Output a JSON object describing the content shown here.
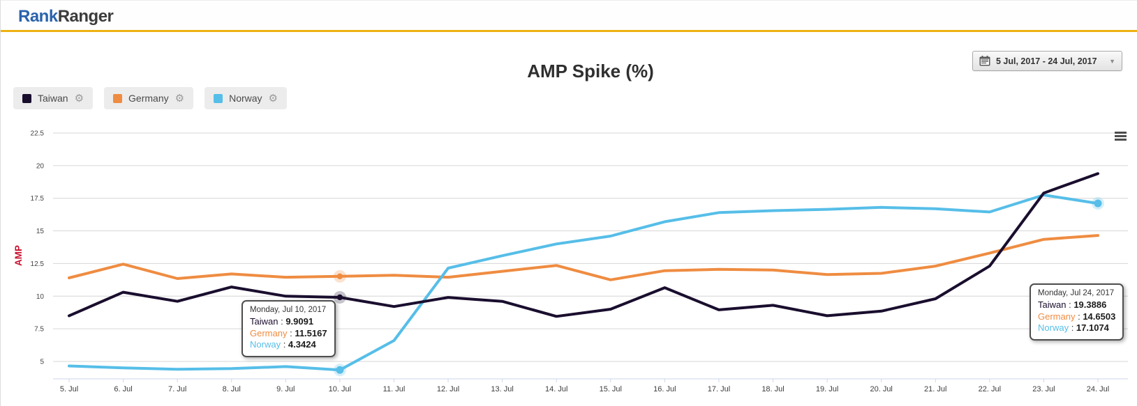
{
  "header": {
    "logo_rank": "Rank",
    "logo_ranger": "Ranger"
  },
  "date_picker": {
    "value": "5 Jul, 2017 - 24 Jul, 2017",
    "dropdown_glyph": "▼"
  },
  "chart_title": "AMP Spike (%)",
  "legend": [
    {
      "name": "Taiwan",
      "color": "#1a0e2e",
      "gear_glyph": "⚙"
    },
    {
      "name": "Germany",
      "color": "#ef8c41",
      "gear_glyph": "⚙"
    },
    {
      "name": "Norway",
      "color": "#56bee8",
      "gear_glyph": "⚙"
    }
  ],
  "colors": {
    "accent_header": "#efb112",
    "logo_blue": "#2a63ad",
    "y_axis_title_red": "#c8102e",
    "gridline": "#d6d6d6",
    "axis_line": "#ccd6eb",
    "tick_label": "#3c3c3c"
  },
  "chart_data": {
    "type": "line",
    "title": "AMP Spike (%)",
    "ylabel": "AMP",
    "ylabel_color": "#c8102e",
    "grid": "horizontal-only",
    "legend_position": "top-left",
    "x_labels": [
      "5. Jul",
      "6. Jul",
      "7. Jul",
      "8. Jul",
      "9. Jul",
      "10. Jul",
      "11. Jul",
      "12. Jul",
      "13. Jul",
      "14. Jul",
      "15. Jul",
      "16. Jul",
      "17. Jul",
      "18. Jul",
      "19. Jul",
      "20. Jul",
      "21. Jul",
      "22. Jul",
      "23. Jul",
      "24. Jul"
    ],
    "y_ticks": [
      5,
      7.5,
      10,
      12.5,
      15,
      17.5,
      20,
      22.5
    ],
    "ylim": [
      3.7,
      22.8
    ],
    "series": [
      {
        "name": "Taiwan",
        "color": "#1a0e2e",
        "values": [
          8.5,
          10.3,
          9.6,
          10.7,
          10.0,
          9.9091,
          9.2,
          9.9,
          9.6,
          8.45,
          9.0,
          10.65,
          8.95,
          9.3,
          8.5,
          8.85,
          9.8,
          12.3,
          17.9,
          19.3886
        ]
      },
      {
        "name": "Germany",
        "color": "#ef8c41",
        "values": [
          11.4,
          12.45,
          11.35,
          11.7,
          11.45,
          11.5167,
          11.6,
          11.45,
          11.9,
          12.35,
          11.25,
          11.95,
          12.05,
          12.0,
          11.65,
          11.75,
          12.3,
          13.3,
          14.35,
          14.6503
        ]
      },
      {
        "name": "Norway",
        "color": "#56bee8",
        "values": [
          4.65,
          4.5,
          4.4,
          4.45,
          4.6,
          4.3424,
          6.6,
          12.15,
          13.1,
          14.0,
          14.6,
          15.7,
          16.4,
          16.55,
          16.65,
          16.8,
          16.7,
          16.45,
          17.75,
          17.1074
        ]
      }
    ],
    "highlight_markers": [
      {
        "series": "Germany",
        "index": 5
      },
      {
        "series": "Norway",
        "index": 5
      },
      {
        "series": "Taiwan",
        "index": 5
      },
      {
        "series": "Norway",
        "index": 19
      }
    ]
  },
  "tooltips": [
    {
      "date_label": "Monday, Jul 10, 2017",
      "rows": [
        {
          "name": "Taiwan",
          "color": "#1a0e2e",
          "value": "9.9091"
        },
        {
          "name": "Germany",
          "color": "#ef8c41",
          "value": "11.5167"
        },
        {
          "name": "Norway",
          "color": "#56bee8",
          "value": "4.3424"
        }
      ]
    },
    {
      "date_label": "Monday, Jul 24, 2017",
      "rows": [
        {
          "name": "Taiwan",
          "color": "#1a0e2e",
          "value": "19.3886"
        },
        {
          "name": "Germany",
          "color": "#ef8c41",
          "value": "14.6503"
        },
        {
          "name": "Norway",
          "color": "#56bee8",
          "value": "17.1074"
        }
      ]
    }
  ]
}
